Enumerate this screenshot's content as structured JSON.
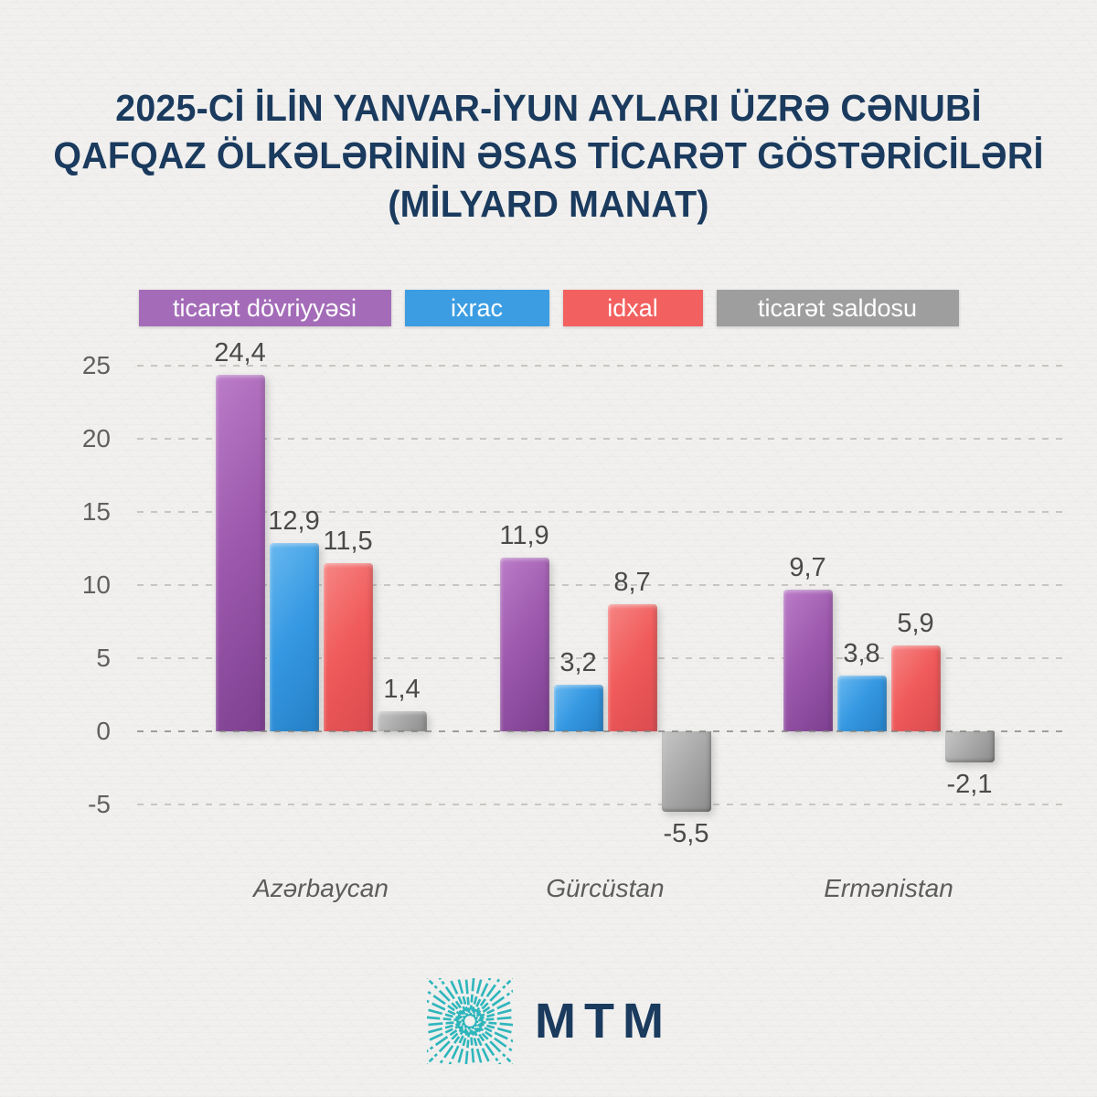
{
  "title": {
    "line1": "2025-Cİ İLİN YANVAR-İYUN AYLARI ÜZRƏ CƏNUBİ",
    "line2": "QAFQAZ ÖLKƏLƏRİNİN ƏSAS TİCARƏT GÖSTƏRİCİLƏRİ",
    "line3": "(MİLYARD MANAT)"
  },
  "legend": {
    "items": [
      {
        "label": "ticarət dövriyyəsi",
        "color": "#a46cb8"
      },
      {
        "label": "ixrac",
        "color": "#3d9de2"
      },
      {
        "label": "idxal",
        "color": "#f2605f"
      },
      {
        "label": "ticarət saldosu",
        "color": "#9e9e9e"
      }
    ]
  },
  "chart_data": {
    "type": "bar",
    "title": "2025-ci ilin yanvar-iyun ayları üzrə Cənubi Qafqaz ölkələrinin əsas ticarət göstəriciləri (milyard manat)",
    "categories": [
      "Azərbaycan",
      "Gürcüstan",
      "Ermənistan"
    ],
    "series": [
      {
        "name": "ticarət dövriyyəsi",
        "color": "#9c58ac",
        "color_light": "#bb7cc8",
        "color_dark": "#7d3f90",
        "values": [
          24.4,
          11.9,
          9.7
        ],
        "labels": [
          "24,4",
          "11,9",
          "9,7"
        ]
      },
      {
        "name": "ixrac",
        "color": "#3598e2",
        "color_light": "#67b8ef",
        "color_dark": "#2480c6",
        "values": [
          12.9,
          3.2,
          3.8
        ],
        "labels": [
          "12,9",
          "3,2",
          "3,8"
        ]
      },
      {
        "name": "idxal",
        "color": "#f05a5a",
        "color_light": "#f68584",
        "color_dark": "#da4b50",
        "values": [
          11.5,
          8.7,
          5.9
        ],
        "labels": [
          "11,5",
          "8,7",
          "5,9"
        ]
      },
      {
        "name": "ticarət saldosu",
        "color": "#a9a9a9",
        "color_light": "#c6c6c6",
        "color_dark": "#8c8c8c",
        "values": [
          1.4,
          -5.5,
          -2.1
        ],
        "labels": [
          "1,4",
          "-5,5",
          "-2,1"
        ]
      }
    ],
    "yticks": [
      25,
      20,
      15,
      10,
      5,
      0,
      -5
    ],
    "ylim": [
      -5,
      25
    ],
    "xlabel": "",
    "ylabel": "",
    "grid": "horizontal-dashed",
    "legend_position": "top"
  },
  "footer": {
    "logo_text": "MTM"
  },
  "colors": {
    "title": "#1a3a5e",
    "background": "#f1f0ee",
    "value_label": "#4a4a4a",
    "axis_label": "#606060",
    "gridline": "#c7c6c2",
    "logo_teal": "#1fb2b8"
  }
}
